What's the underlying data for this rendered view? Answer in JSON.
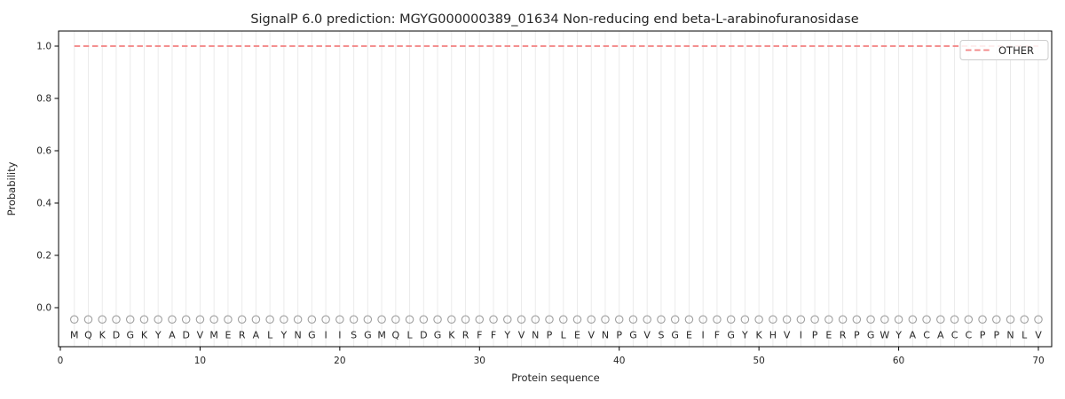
{
  "figure": {
    "title": "SignalP 6.0 prediction: MGYG000000389_01634 Non-reducing end beta-L-arabinofuranosidase"
  },
  "chart_data": {
    "type": "line",
    "title": "SignalP 6.0 prediction: MGYG000000389_01634 Non-reducing end beta-L-arabinofuranosidase",
    "xlabel": "Protein sequence",
    "ylabel": "Probability",
    "xlim": [
      -0.2,
      71
    ],
    "ylim": [
      -0.15,
      1.05
    ],
    "xticks": [
      0,
      10,
      20,
      30,
      40,
      50,
      60,
      70
    ],
    "xtick_labels": [
      "0",
      "10",
      "20",
      "30",
      "40",
      "50",
      "60",
      "70"
    ],
    "yticks": [
      0.0,
      0.2,
      0.4,
      0.6,
      0.8,
      1.0
    ],
    "ytick_labels": [
      "0.0",
      "0.2",
      "0.4",
      "0.6",
      "0.8",
      "1.0"
    ],
    "grid": "vertical-gridline-at-each-residue",
    "legend": {
      "position": "upper-right",
      "entries": [
        {
          "label": "OTHER",
          "color": "#f28181",
          "linestyle": "dashed"
        }
      ]
    },
    "series": [
      {
        "name": "OTHER",
        "linestyle": "dashed",
        "color": "#f28181",
        "constant": true,
        "x": [
          1,
          70
        ],
        "y": [
          1.0,
          1.0
        ]
      }
    ],
    "sequence": [
      "M",
      "Q",
      "K",
      "D",
      "G",
      "K",
      "Y",
      "A",
      "D",
      "V",
      "M",
      "E",
      "R",
      "A",
      "L",
      "Y",
      "N",
      "G",
      "I",
      "I",
      "S",
      "G",
      "M",
      "Q",
      "L",
      "D",
      "G",
      "K",
      "R",
      "F",
      "F",
      "Y",
      "V",
      "N",
      "P",
      "L",
      "E",
      "V",
      "N",
      "P",
      "G",
      "V",
      "S",
      "G",
      "E",
      "I",
      "F",
      "G",
      "Y",
      "K",
      "H",
      "V",
      "I",
      "P",
      "E",
      "R",
      "P",
      "G",
      "W",
      "Y",
      "A",
      "C",
      "A",
      "C",
      "C",
      "P",
      "P",
      "N",
      "L",
      "V"
    ],
    "residue_markers": {
      "shape": "open-circle",
      "y": -0.045,
      "color": "#a0a0a0"
    }
  },
  "colors": {
    "other_line": "#f28181",
    "gridline": "#ebebeb",
    "marker_circle": "#a0a0a0",
    "sequence_letter": "#333333",
    "spine": "#000000",
    "legend_border": "#cccccc",
    "text": "#262626"
  }
}
